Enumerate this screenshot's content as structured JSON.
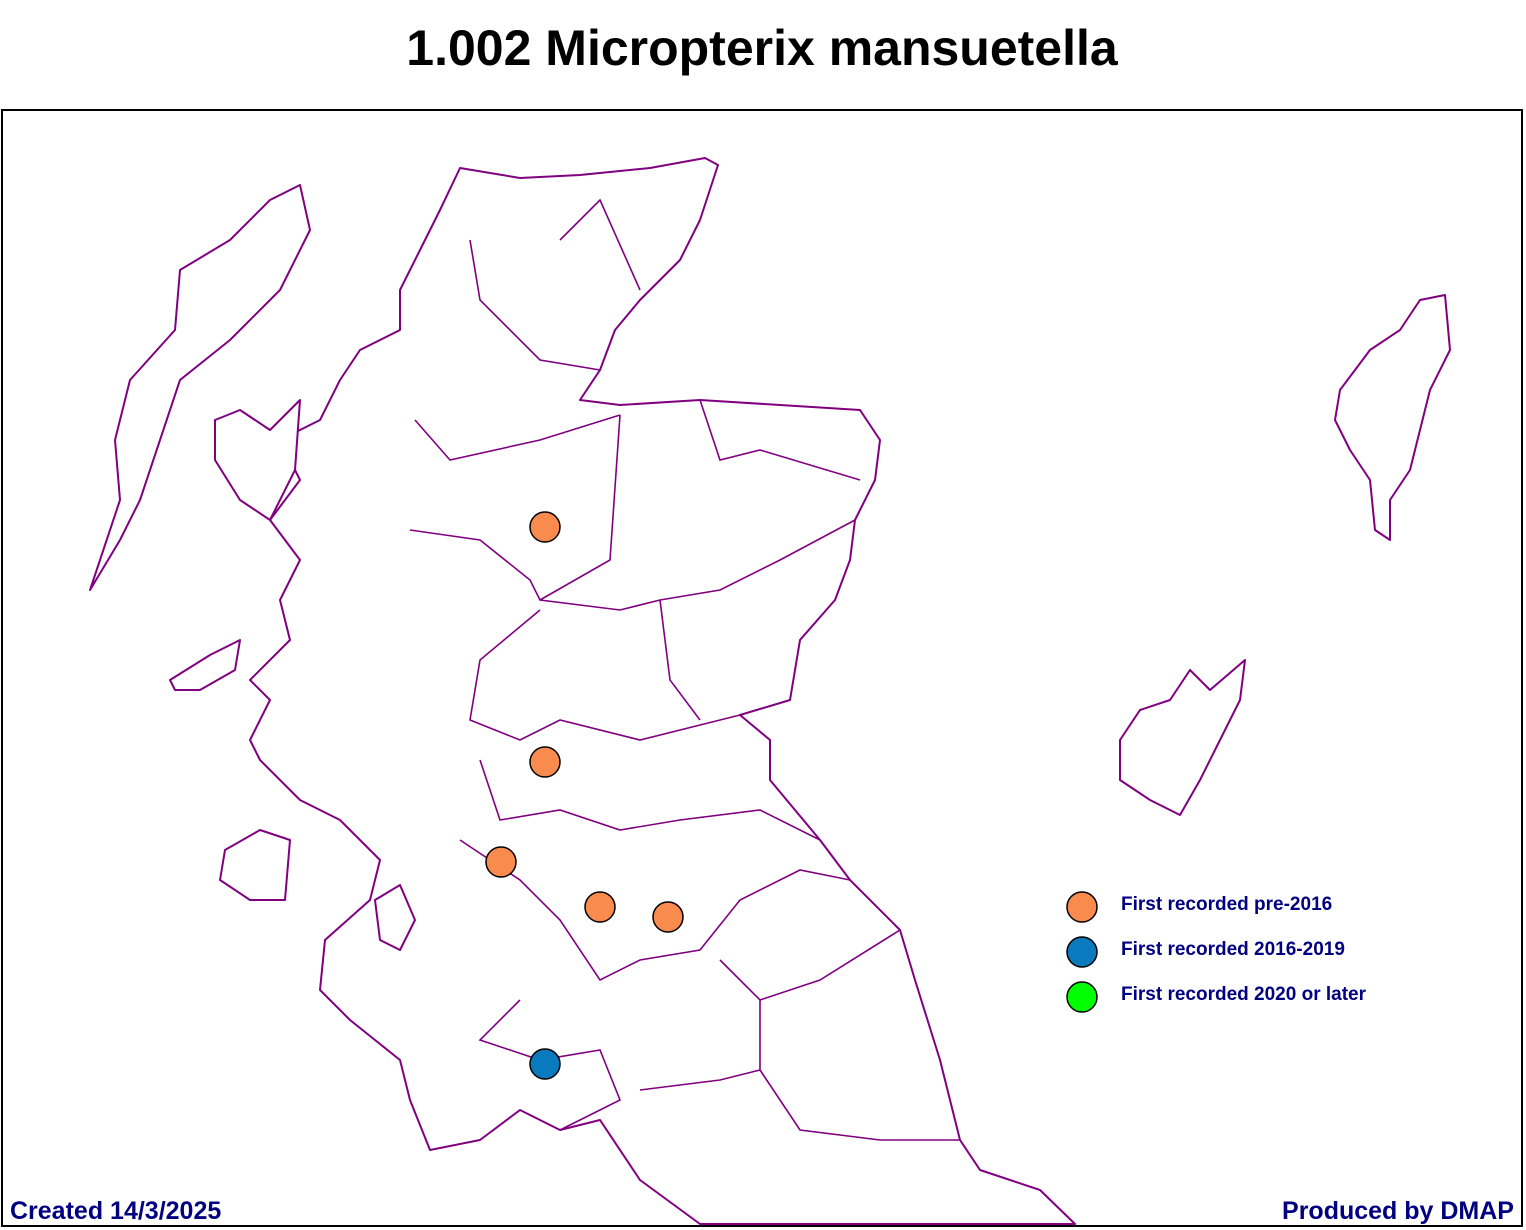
{
  "title": "1.002 Micropterix mansuetella",
  "legend": [
    {
      "label": "First recorded pre-2016",
      "color": "#f98b4e"
    },
    {
      "label": "First recorded 2016-2019",
      "color": "#0a7abf"
    },
    {
      "label": "First recorded 2020 or later",
      "color": "#00ff00"
    }
  ],
  "footer": {
    "created": "Created 14/3/2025",
    "produced": "Produced by DMAP"
  }
}
